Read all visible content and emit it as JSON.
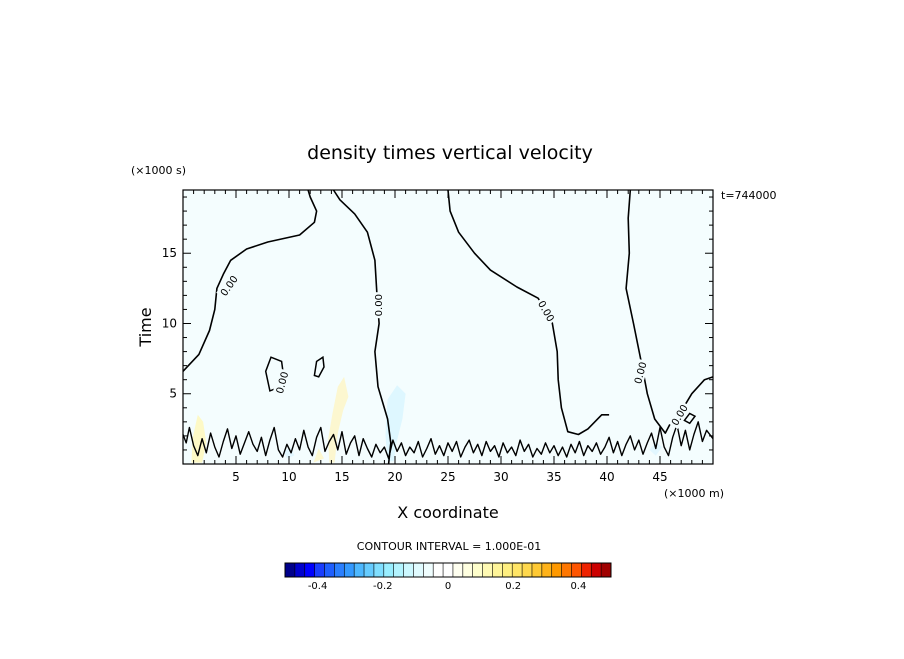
{
  "chart_data": {
    "type": "contour",
    "title": "density times vertical velocity",
    "xlabel": "X coordinate",
    "ylabel": "Time",
    "x_unit": "(×1000 m)",
    "y_unit": "(×1000 s)",
    "time_annotation": "t=744000",
    "xlim": [
      0,
      50
    ],
    "ylim": [
      0,
      19.5
    ],
    "x_ticks": [
      5,
      10,
      15,
      20,
      25,
      30,
      35,
      40,
      45
    ],
    "x_tick_labels": [
      "5",
      "10",
      "15",
      "20",
      "25",
      "30",
      "35",
      "40",
      "45"
    ],
    "y_ticks": [
      5,
      10,
      15
    ],
    "y_tick_labels": [
      "5",
      "10",
      "15"
    ],
    "contour_interval_text": "CONTOUR INTERVAL = 1.000E-01",
    "contour_label": "0.00",
    "colorbar": {
      "min": -0.5,
      "max": 0.5,
      "ticks": [
        -0.4,
        -0.2,
        0,
        0.2,
        0.4
      ],
      "tick_labels": [
        "-0.4",
        "-0.2",
        "0",
        "0.2",
        "0.4"
      ],
      "colors": [
        "#00008b",
        "#0000cd",
        "#0000ff",
        "#1a3dff",
        "#1f5fff",
        "#2a7fff",
        "#3399ff",
        "#4db8ff",
        "#66ccff",
        "#80dfff",
        "#99eeff",
        "#b3f4ff",
        "#ccf8ff",
        "#e0fbff",
        "#f0feff",
        "#ffffff",
        "#ffffff",
        "#fffff0",
        "#ffffe0",
        "#ffffcc",
        "#fffab3",
        "#fff599",
        "#ffef80",
        "#ffe566",
        "#ffd84d",
        "#ffc933",
        "#ffb31a",
        "#ff9900",
        "#ff7700",
        "#ff5500",
        "#ee2200",
        "#cc0000",
        "#a00000"
      ]
    },
    "zero_contours": [
      {
        "points": [
          [
            0,
            6.6
          ],
          [
            1.5,
            7.8
          ],
          [
            2.5,
            9.5
          ],
          [
            3,
            11
          ],
          [
            3.2,
            12.5
          ],
          [
            3.8,
            13.5
          ],
          [
            4.5,
            14.5
          ],
          [
            6,
            15.3
          ],
          [
            8,
            15.8
          ],
          [
            11,
            16.3
          ],
          [
            12.4,
            17.2
          ],
          [
            12.6,
            18
          ],
          [
            12,
            19
          ],
          [
            11.8,
            19.5
          ]
        ]
      },
      {
        "points": [
          [
            14.2,
            19.5
          ],
          [
            14.8,
            18.8
          ],
          [
            16.2,
            17.8
          ],
          [
            17.4,
            16.5
          ],
          [
            18.1,
            14.5
          ],
          [
            18.3,
            12
          ],
          [
            18.5,
            10
          ],
          [
            18.1,
            8
          ],
          [
            18.4,
            5.5
          ],
          [
            19.3,
            3.2
          ],
          [
            19.6,
            1.5
          ],
          [
            19.4,
            0
          ]
        ]
      },
      {
        "points": [
          [
            25,
            19.5
          ],
          [
            25.2,
            18
          ],
          [
            26,
            16.5
          ],
          [
            27.5,
            15
          ],
          [
            29,
            13.8
          ],
          [
            31.5,
            12.6
          ],
          [
            33.5,
            11.8
          ],
          [
            34.8,
            10.2
          ],
          [
            35.3,
            8
          ],
          [
            35.4,
            6
          ],
          [
            35.7,
            4
          ],
          [
            36.3,
            2.3
          ],
          [
            37.3,
            2.1
          ],
          [
            38.2,
            2.5
          ],
          [
            39.5,
            3.5
          ],
          [
            40.2,
            3.5
          ]
        ]
      },
      {
        "points": [
          [
            42.2,
            19.5
          ],
          [
            42,
            17.5
          ],
          [
            42.1,
            15
          ],
          [
            41.8,
            12.5
          ],
          [
            42.5,
            10
          ],
          [
            43.3,
            7
          ],
          [
            43.8,
            5
          ],
          [
            44.5,
            3.2
          ],
          [
            45.5,
            2.2
          ],
          [
            46.2,
            3.2
          ],
          [
            47.2,
            4
          ],
          [
            48,
            5
          ],
          [
            49.2,
            6
          ],
          [
            50,
            6.2
          ]
        ]
      }
    ],
    "small_contours": [
      {
        "points": [
          [
            8.2,
            5.2
          ],
          [
            7.8,
            6.6
          ],
          [
            8.3,
            7.6
          ],
          [
            9.3,
            7.3
          ],
          [
            9.5,
            6.2
          ],
          [
            9.2,
            5.5
          ]
        ]
      },
      {
        "points": [
          [
            12.4,
            6.3
          ],
          [
            12.6,
            7.3
          ],
          [
            13.2,
            7.6
          ],
          [
            13.3,
            6.9
          ],
          [
            12.8,
            6.2
          ]
        ]
      },
      {
        "points": [
          [
            47.3,
            3.1
          ],
          [
            47.8,
            3.6
          ],
          [
            48.3,
            3.4
          ],
          [
            47.8,
            2.9
          ]
        ]
      }
    ],
    "bottom_ribbon": {
      "points": [
        [
          0,
          2.1
        ],
        [
          0.3,
          1.5
        ],
        [
          0.6,
          2.6
        ],
        [
          1.0,
          1.3
        ],
        [
          1.4,
          0.6
        ],
        [
          1.8,
          1.8
        ],
        [
          2.2,
          0.8
        ],
        [
          2.6,
          2.2
        ],
        [
          3.0,
          1.2
        ],
        [
          3.4,
          0.5
        ],
        [
          3.8,
          1.6
        ],
        [
          4.2,
          2.5
        ],
        [
          4.6,
          1.1
        ],
        [
          5.0,
          2.0
        ],
        [
          5.4,
          0.7
        ],
        [
          5.8,
          1.5
        ],
        [
          6.2,
          2.3
        ],
        [
          6.6,
          1.4
        ],
        [
          7.0,
          0.9
        ],
        [
          7.4,
          1.9
        ],
        [
          7.8,
          0.6
        ],
        [
          8.2,
          1.7
        ],
        [
          8.6,
          2.6
        ],
        [
          9.0,
          1.0
        ],
        [
          9.4,
          0.5
        ],
        [
          9.8,
          1.4
        ],
        [
          10.2,
          0.8
        ],
        [
          10.6,
          1.8
        ],
        [
          11.0,
          1.0
        ],
        [
          11.4,
          2.4
        ],
        [
          11.8,
          1.2
        ],
        [
          12.2,
          0.6
        ],
        [
          12.6,
          1.9
        ],
        [
          13.0,
          2.6
        ],
        [
          13.4,
          0.9
        ],
        [
          13.8,
          1.6
        ],
        [
          14.2,
          2.1
        ],
        [
          14.6,
          1.0
        ],
        [
          15.0,
          2.3
        ],
        [
          15.4,
          0.7
        ],
        [
          15.8,
          1.5
        ],
        [
          16.2,
          2.0
        ],
        [
          16.6,
          0.6
        ],
        [
          17.0,
          1.8
        ],
        [
          17.4,
          1.1
        ],
        [
          17.8,
          0.5
        ],
        [
          18.2,
          1.4
        ],
        [
          18.6,
          0.8
        ],
        [
          19.0,
          1.2
        ],
        [
          19.4,
          0.4
        ],
        [
          19.8,
          1.7
        ],
        [
          20.2,
          0.9
        ],
        [
          20.6,
          1.5
        ],
        [
          21.0,
          0.6
        ],
        [
          21.4,
          1.2
        ],
        [
          21.8,
          0.8
        ],
        [
          22.2,
          1.6
        ],
        [
          22.6,
          0.5
        ],
        [
          23.0,
          1.1
        ],
        [
          23.4,
          1.8
        ],
        [
          23.8,
          0.7
        ],
        [
          24.2,
          1.3
        ],
        [
          24.6,
          0.6
        ],
        [
          25.0,
          1.5
        ],
        [
          25.4,
          0.9
        ],
        [
          25.8,
          1.6
        ],
        [
          26.2,
          0.5
        ],
        [
          26.6,
          1.2
        ],
        [
          27.0,
          1.7
        ],
        [
          27.4,
          0.8
        ],
        [
          27.8,
          1.4
        ],
        [
          28.2,
          0.6
        ],
        [
          28.6,
          1.6
        ],
        [
          29.0,
          0.9
        ],
        [
          29.4,
          1.3
        ],
        [
          29.8,
          0.5
        ],
        [
          30.2,
          1.5
        ],
        [
          30.6,
          0.8
        ],
        [
          31.0,
          1.2
        ],
        [
          31.4,
          0.6
        ],
        [
          31.8,
          1.7
        ],
        [
          32.2,
          0.9
        ],
        [
          32.6,
          1.4
        ],
        [
          33.0,
          0.5
        ],
        [
          33.4,
          1.1
        ],
        [
          33.8,
          0.7
        ],
        [
          34.2,
          1.5
        ],
        [
          34.6,
          0.8
        ],
        [
          35.0,
          1.3
        ],
        [
          35.4,
          0.6
        ],
        [
          35.8,
          1.2
        ],
        [
          36.2,
          0.5
        ],
        [
          36.6,
          1.4
        ],
        [
          37.0,
          0.8
        ],
        [
          37.4,
          1.6
        ],
        [
          37.8,
          0.6
        ],
        [
          38.2,
          1.3
        ],
        [
          38.6,
          0.9
        ],
        [
          39.0,
          1.5
        ],
        [
          39.4,
          0.7
        ],
        [
          39.8,
          1.2
        ],
        [
          40.2,
          1.9
        ],
        [
          40.6,
          0.8
        ],
        [
          41.0,
          1.6
        ],
        [
          41.4,
          0.6
        ],
        [
          41.8,
          1.4
        ],
        [
          42.2,
          2.0
        ],
        [
          42.6,
          1.0
        ],
        [
          43.0,
          1.7
        ],
        [
          43.4,
          0.7
        ],
        [
          43.8,
          1.5
        ],
        [
          44.2,
          2.2
        ],
        [
          44.6,
          1.1
        ],
        [
          45.0,
          2.6
        ],
        [
          45.4,
          1.2
        ],
        [
          45.8,
          0.6
        ],
        [
          46.2,
          1.9
        ],
        [
          46.6,
          2.8
        ],
        [
          47.0,
          1.3
        ],
        [
          47.4,
          2.4
        ],
        [
          47.8,
          1.0
        ],
        [
          48.2,
          2.1
        ],
        [
          48.6,
          3.0
        ],
        [
          49.0,
          1.6
        ],
        [
          49.4,
          2.4
        ],
        [
          50,
          1.8
        ]
      ]
    },
    "shaded_patches": [
      {
        "color": "#fdf9c6",
        "points": [
          [
            0.8,
            0.1
          ],
          [
            0.9,
            1.8
          ],
          [
            1.4,
            3.5
          ],
          [
            1.9,
            3.0
          ],
          [
            2.2,
            1.5
          ],
          [
            1.8,
            0.1
          ]
        ]
      },
      {
        "color": "#fcf7d0",
        "points": [
          [
            14.3,
            0.1
          ],
          [
            14.6,
            2.2
          ],
          [
            15.1,
            3.8
          ],
          [
            15.6,
            4.8
          ],
          [
            15.2,
            6.2
          ],
          [
            14.6,
            5.5
          ],
          [
            14.1,
            3.6
          ],
          [
            13.7,
            1.8
          ],
          [
            13.8,
            0.1
          ]
        ]
      },
      {
        "color": "#fdf8cf",
        "points": [
          [
            12.3,
            0.1
          ],
          [
            12.8,
            1.1
          ],
          [
            13.3,
            0.4
          ]
        ]
      },
      {
        "color": "#def7ff",
        "points": [
          [
            19.3,
            4.6
          ],
          [
            20.2,
            5.6
          ],
          [
            21.0,
            5.0
          ],
          [
            20.7,
            3.2
          ],
          [
            20.1,
            1.4
          ],
          [
            19.9,
            0.2
          ],
          [
            19.3,
            0.2
          ],
          [
            19.1,
            2.0
          ],
          [
            19.2,
            3.6
          ]
        ]
      },
      {
        "color": "#e2f7ff",
        "points": [
          [
            9.5,
            0.9
          ],
          [
            10.2,
            1.2
          ],
          [
            10.5,
            0.6
          ],
          [
            9.8,
            0.4
          ]
        ]
      },
      {
        "color": "#e2f7ff",
        "points": [
          [
            44.0,
            1.0
          ],
          [
            44.6,
            1.6
          ],
          [
            45.2,
            1.2
          ],
          [
            44.6,
            0.6
          ]
        ]
      }
    ],
    "contour_labels": [
      {
        "x": 4.3,
        "y": 12.7,
        "angle": -55
      },
      {
        "x": 18.4,
        "y": 11.3,
        "angle": -90
      },
      {
        "x": 34.3,
        "y": 10.9,
        "angle": 60
      },
      {
        "x": 43.1,
        "y": 6.5,
        "angle": -75
      },
      {
        "x": 9.3,
        "y": 5.8,
        "angle": -75
      },
      {
        "x": 46.8,
        "y": 3.5,
        "angle": -60
      }
    ]
  }
}
